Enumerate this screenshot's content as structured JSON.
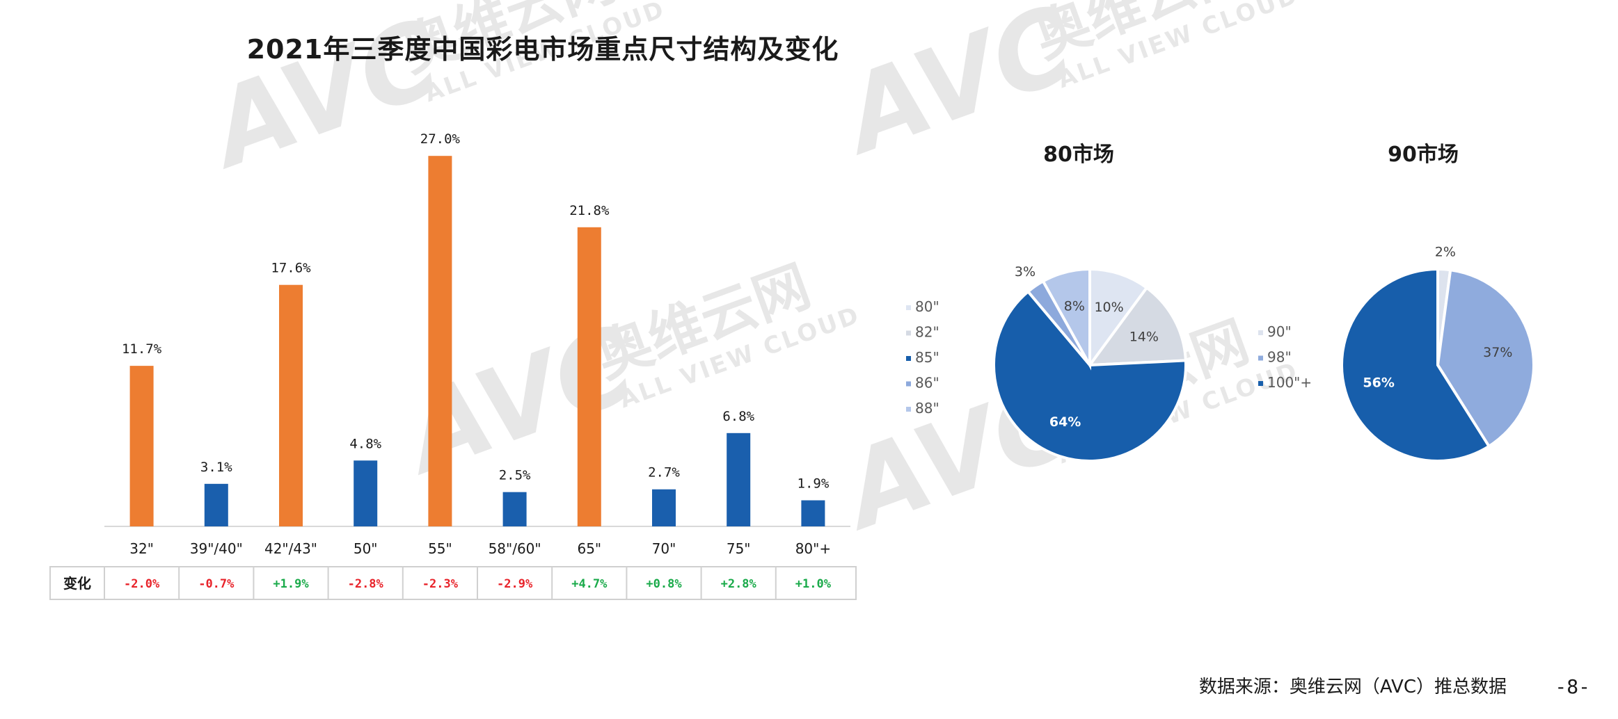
{
  "title": "2021年三季度中国彩电市场重点尺寸结构及变化",
  "source": "数据来源：奥维云网（AVC）推总数据",
  "page_number": "-8-",
  "watermark": {
    "logo": "AVC",
    "brand_cn": "奥维云网",
    "brand_en": "ALL VIEW CLOUD"
  },
  "colors": {
    "orange": "#ED7D31",
    "blue": "#1A5FAD",
    "negative": "#E8232A",
    "positive": "#1AAA4A"
  },
  "chart_data": [
    {
      "type": "bar",
      "categories": [
        "32\"",
        "39\"/40\"",
        "42\"/43\"",
        "50\"",
        "55\"",
        "58\"/60\"",
        "65\"",
        "70\"",
        "75\"",
        "80\"+"
      ],
      "values": [
        11.7,
        3.1,
        17.6,
        4.8,
        27.0,
        2.5,
        21.8,
        2.7,
        6.8,
        1.9
      ],
      "value_labels": [
        "11.7%",
        "3.1%",
        "17.6%",
        "4.8%",
        "27.0%",
        "2.5%",
        "21.8%",
        "2.7%",
        "6.8%",
        "1.9%"
      ],
      "bar_colors": [
        "#ED7D31",
        "#1A5FAD",
        "#ED7D31",
        "#1A5FAD",
        "#ED7D31",
        "#1A5FAD",
        "#ED7D31",
        "#1A5FAD",
        "#1A5FAD",
        "#1A5FAD"
      ],
      "ylim": [
        0,
        30
      ],
      "change_table": {
        "header": "变化",
        "values": [
          "-2.0%",
          "-0.7%",
          "+1.9%",
          "-2.8%",
          "-2.3%",
          "-2.9%",
          "+4.7%",
          "+0.8%",
          "+2.8%",
          "+1.0%"
        ]
      }
    },
    {
      "type": "pie",
      "title": "80市场",
      "slices": [
        {
          "label": "80\"",
          "value": 10,
          "text": "10%",
          "color": "#DEE5F2"
        },
        {
          "label": "82\"",
          "value": 14,
          "text": "14%",
          "color": "#D5DAE3"
        },
        {
          "label": "85\"",
          "value": 64,
          "text": "64%",
          "color": "#175EAB"
        },
        {
          "label": "86\"",
          "value": 3,
          "text": "3%",
          "color": "#8DA9DC"
        },
        {
          "label": "88\"",
          "value": 8,
          "text": "8%",
          "color": "#B4C7EA"
        }
      ]
    },
    {
      "type": "pie",
      "title": "90市场",
      "slices": [
        {
          "label": "90\"",
          "value": 2,
          "text": "2%",
          "color": "#DDE3EE"
        },
        {
          "label": "98\"",
          "value": 37,
          "text": "37%",
          "color": "#8FABDD"
        },
        {
          "label": "100\"+",
          "value": 56,
          "text": "56%",
          "color": "#175EAB"
        }
      ]
    }
  ]
}
